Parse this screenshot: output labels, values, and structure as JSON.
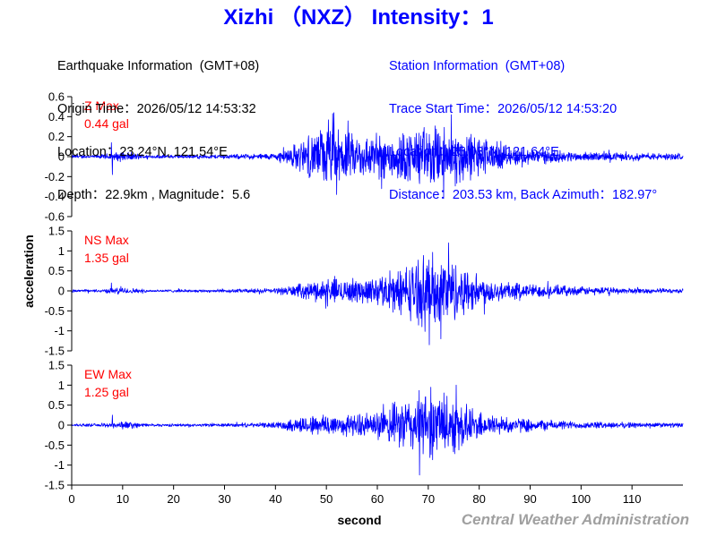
{
  "header": {
    "title": "Xizhi （NXZ） Intensity：1"
  },
  "earthquake_info": {
    "heading": "Earthquake Information  (GMT+08)",
    "origin_time": "Origin Time：2026/05/12 14:53:32",
    "location": "Location：23.24°N, 121.54°E",
    "depth_magnitude": "Depth：22.9km , Magnitude：5.6"
  },
  "station_info": {
    "heading": "Station Information  (GMT+08)",
    "trace_start": "Trace Start Time：2026/05/12 14:53:20",
    "location": "Location：25.08°N, 121.64°E",
    "distance": "Distance：203.53 km, Back Azimuth：182.97°"
  },
  "credit": "Central Weather Administration",
  "colors": {
    "title": "#0000ff",
    "trace": "#0000ff",
    "max_label": "#ff0000",
    "station_text": "#0000ff",
    "credit": "#a0a0a0",
    "axis": "#000000"
  },
  "chart_data": {
    "type": "line",
    "title": "Xizhi （NXZ） Intensity：1",
    "xlabel": "second",
    "ylabel": "acceleration",
    "xlim": [
      0,
      120
    ],
    "x_ticks": [
      0,
      10,
      20,
      30,
      40,
      50,
      60,
      70,
      80,
      90,
      100,
      110
    ],
    "x_tick_labels": [
      "0",
      "10",
      "20",
      "30",
      "40",
      "50",
      "60",
      "70",
      "80",
      "90",
      "100",
      "110"
    ],
    "grid": false,
    "note_on_series": "Seismogram traces are dense waveforms; values below are approximate envelope amplitudes (gal) sampled every 5 s, read from the plot.",
    "envelope_x": [
      0,
      5,
      10,
      15,
      20,
      25,
      30,
      35,
      40,
      45,
      50,
      55,
      60,
      65,
      70,
      75,
      80,
      85,
      90,
      95,
      100,
      105,
      110,
      115,
      120
    ],
    "panels": [
      {
        "component": "Z",
        "max_label": "Z Max",
        "max_value": "0.44 gal",
        "ylim": [
          -0.6,
          0.6
        ],
        "y_ticks": [
          -0.6,
          -0.4,
          -0.2,
          0,
          0.2,
          0.4,
          0.6
        ],
        "y_tick_labels": [
          "-0.6",
          "-0.4",
          "-0.2",
          "0",
          "0.2",
          "0.4",
          "0.6"
        ],
        "envelope": [
          0.02,
          0.02,
          0.06,
          0.02,
          0.02,
          0.02,
          0.025,
          0.03,
          0.04,
          0.18,
          0.36,
          0.26,
          0.25,
          0.3,
          0.36,
          0.34,
          0.25,
          0.12,
          0.09,
          0.07,
          0.05,
          0.05,
          0.04,
          0.04,
          0.035
        ],
        "spikes": [
          {
            "x": 7.8,
            "y": 0.14
          },
          {
            "x": 8.0,
            "y": -0.18
          },
          {
            "x": 51.5,
            "y": 0.44
          },
          {
            "x": 52.0,
            "y": -0.38
          },
          {
            "x": 73.0,
            "y": -0.42
          },
          {
            "x": 74.5,
            "y": 0.42
          }
        ]
      },
      {
        "component": "NS",
        "max_label": "NS Max",
        "max_value": "1.35 gal",
        "ylim": [
          -1.5,
          1.5
        ],
        "y_ticks": [
          -1.5,
          -1,
          -0.5,
          0,
          0.5,
          1,
          1.5
        ],
        "y_tick_labels": [
          "-1.5",
          "-1",
          "-0.5",
          "0",
          "0.5",
          "1",
          "1.5"
        ],
        "envelope": [
          0.04,
          0.04,
          0.1,
          0.04,
          0.04,
          0.04,
          0.05,
          0.06,
          0.08,
          0.2,
          0.36,
          0.34,
          0.4,
          0.7,
          1.1,
          0.9,
          0.45,
          0.28,
          0.2,
          0.16,
          0.12,
          0.1,
          0.08,
          0.07,
          0.06
        ],
        "spikes": [
          {
            "x": 7.8,
            "y": 0.2
          },
          {
            "x": 70.2,
            "y": -1.35
          },
          {
            "x": 74.0,
            "y": 1.2
          },
          {
            "x": 72.5,
            "y": -1.2
          }
        ]
      },
      {
        "component": "EW",
        "max_label": "EW Max",
        "max_value": "1.25 gal",
        "ylim": [
          -1.5,
          1.5
        ],
        "y_ticks": [
          -1.5,
          -1,
          -0.5,
          0,
          0.5,
          1,
          1.5
        ],
        "y_tick_labels": [
          "-1.5",
          "-1",
          "-0.5",
          "0",
          "0.5",
          "1",
          "1.5"
        ],
        "envelope": [
          0.04,
          0.04,
          0.12,
          0.04,
          0.04,
          0.04,
          0.05,
          0.06,
          0.08,
          0.25,
          0.35,
          0.3,
          0.38,
          0.75,
          1.0,
          0.8,
          0.4,
          0.25,
          0.18,
          0.14,
          0.1,
          0.09,
          0.08,
          0.07,
          0.06
        ],
        "spikes": [
          {
            "x": 8.0,
            "y": 0.25
          },
          {
            "x": 68.3,
            "y": -1.25
          },
          {
            "x": 75.5,
            "y": 1.0
          },
          {
            "x": 70.5,
            "y": 0.95
          }
        ]
      }
    ]
  }
}
